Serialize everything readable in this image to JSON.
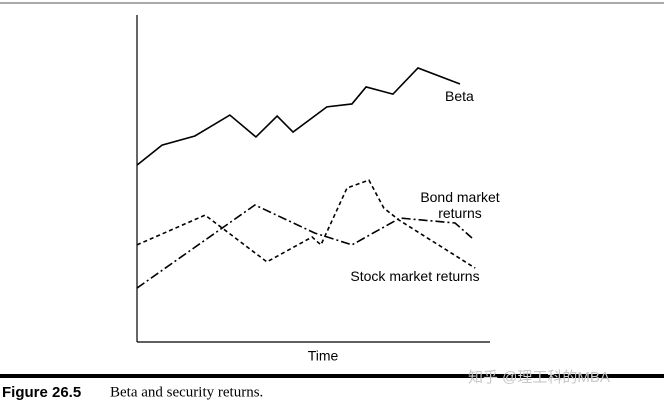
{
  "chart_data": {
    "type": "line",
    "xlabel": "Time",
    "xlim": [
      0,
      100
    ],
    "ylim": [
      0,
      100
    ],
    "series": [
      {
        "name": "Beta",
        "color": "#000000",
        "style": "solid",
        "x": [
          0,
          7.1,
          16.4,
          26.3,
          33.7,
          39.7,
          44.2,
          53.8,
          60.9,
          64.9,
          72.5,
          79.6,
          91.5
        ],
        "values": [
          54.1,
          60.2,
          63.0,
          69.4,
          62.7,
          69.1,
          64.2,
          71.9,
          72.8,
          78.0,
          75.8,
          83.8,
          78.9
        ]
      },
      {
        "name": "Bond market returns",
        "color": "#000000",
        "style": "dashdot",
        "x": [
          0,
          33.4,
          50.4,
          60.9,
          74.5,
          90.1,
          94.9
        ],
        "values": [
          16.5,
          41.9,
          33.3,
          29.7,
          37.9,
          36.4,
          31.8
        ]
      },
      {
        "name": "Stock market returns",
        "color": "#000000",
        "style": "dashed",
        "x": [
          0,
          19.3,
          36.8,
          49.6,
          52.1,
          59.5,
          65.7,
          69.9,
          74.2,
          95.8
        ],
        "values": [
          29.7,
          38.8,
          24.5,
          32.1,
          29.7,
          47.1,
          49.5,
          41.0,
          37.3,
          22.6
        ]
      }
    ]
  },
  "caption": {
    "label": "Figure 26.5",
    "text": "Beta and security returns."
  },
  "watermark": "知乎 @理工科的MBA"
}
